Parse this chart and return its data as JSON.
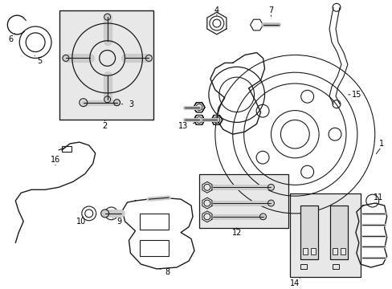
{
  "bg_color": "#ffffff",
  "line_color": "#1a1a1a",
  "box_bg": "#e8e8e8",
  "figsize": [
    4.89,
    3.6
  ],
  "dpi": 100
}
